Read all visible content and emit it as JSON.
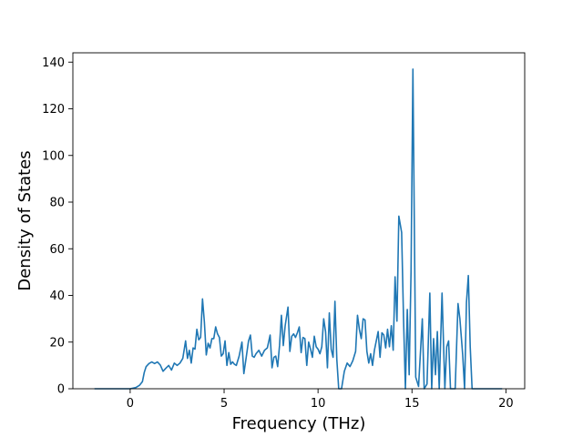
{
  "chart_data": {
    "type": "line",
    "title": "",
    "xlabel": "Frequency (THz)",
    "ylabel": "Density of States",
    "xlim": [
      -3.05,
      21.0
    ],
    "ylim": [
      0,
      144
    ],
    "xticks": [
      0,
      5,
      10,
      15,
      20
    ],
    "yticks": [
      0,
      20,
      40,
      60,
      80,
      100,
      120,
      140
    ],
    "grid": false,
    "legend": "none",
    "series": [
      {
        "color": "#1f77b4",
        "points": [
          [
            -1.9,
            0
          ],
          [
            -1.0,
            0
          ],
          [
            0.0,
            0
          ],
          [
            0.3,
            0.5
          ],
          [
            0.5,
            1.5
          ],
          [
            0.65,
            3
          ],
          [
            0.75,
            7
          ],
          [
            0.85,
            9.5
          ],
          [
            1.0,
            10.8
          ],
          [
            1.15,
            11.5
          ],
          [
            1.3,
            10.8
          ],
          [
            1.45,
            11.5
          ],
          [
            1.6,
            10.2
          ],
          [
            1.75,
            7.5
          ],
          [
            1.9,
            8.8
          ],
          [
            2.05,
            10.0
          ],
          [
            2.2,
            8.0
          ],
          [
            2.35,
            11.0
          ],
          [
            2.5,
            10.0
          ],
          [
            2.65,
            11.0
          ],
          [
            2.8,
            13.0
          ],
          [
            2.95,
            20.5
          ],
          [
            3.05,
            13.0
          ],
          [
            3.15,
            16.5
          ],
          [
            3.25,
            11.0
          ],
          [
            3.35,
            17.5
          ],
          [
            3.45,
            17.0
          ],
          [
            3.55,
            25.5
          ],
          [
            3.65,
            21.0
          ],
          [
            3.75,
            22.0
          ],
          [
            3.85,
            38.5
          ],
          [
            3.95,
            28.5
          ],
          [
            4.05,
            14.5
          ],
          [
            4.15,
            19.5
          ],
          [
            4.25,
            17.5
          ],
          [
            4.35,
            21.5
          ],
          [
            4.45,
            21.5
          ],
          [
            4.55,
            26.5
          ],
          [
            4.65,
            23.5
          ],
          [
            4.75,
            22.0
          ],
          [
            4.85,
            14.0
          ],
          [
            4.95,
            15.0
          ],
          [
            5.05,
            20.5
          ],
          [
            5.15,
            10.0
          ],
          [
            5.25,
            15.5
          ],
          [
            5.35,
            10.5
          ],
          [
            5.45,
            11.5
          ],
          [
            5.55,
            10.5
          ],
          [
            5.65,
            10.0
          ],
          [
            5.8,
            14.0
          ],
          [
            5.95,
            20.0
          ],
          [
            6.05,
            6.5
          ],
          [
            6.15,
            12.0
          ],
          [
            6.3,
            20.5
          ],
          [
            6.4,
            23.0
          ],
          [
            6.5,
            14.0
          ],
          [
            6.6,
            13.5
          ],
          [
            6.7,
            15.0
          ],
          [
            6.85,
            16.5
          ],
          [
            7.0,
            14.0
          ],
          [
            7.15,
            16.5
          ],
          [
            7.3,
            17.5
          ],
          [
            7.45,
            23.0
          ],
          [
            7.55,
            9.0
          ],
          [
            7.65,
            13.5
          ],
          [
            7.75,
            14.0
          ],
          [
            7.85,
            9.5
          ],
          [
            7.95,
            18.5
          ],
          [
            8.05,
            31.5
          ],
          [
            8.15,
            18.5
          ],
          [
            8.25,
            27.0
          ],
          [
            8.4,
            35.0
          ],
          [
            8.5,
            16.0
          ],
          [
            8.6,
            22.5
          ],
          [
            8.7,
            23.5
          ],
          [
            8.8,
            22.0
          ],
          [
            8.9,
            24.0
          ],
          [
            9.0,
            26.5
          ],
          [
            9.1,
            15.5
          ],
          [
            9.2,
            22.0
          ],
          [
            9.3,
            21.5
          ],
          [
            9.4,
            10.0
          ],
          [
            9.5,
            20.0
          ],
          [
            9.6,
            17.0
          ],
          [
            9.7,
            13.5
          ],
          [
            9.8,
            22.5
          ],
          [
            9.9,
            18.0
          ],
          [
            10.0,
            17.0
          ],
          [
            10.1,
            15.0
          ],
          [
            10.2,
            18.0
          ],
          [
            10.3,
            30.0
          ],
          [
            10.4,
            24.5
          ],
          [
            10.5,
            9.0
          ],
          [
            10.6,
            32.5
          ],
          [
            10.7,
            17.0
          ],
          [
            10.8,
            13.5
          ],
          [
            10.9,
            37.5
          ],
          [
            11.0,
            12.5
          ],
          [
            11.1,
            0
          ],
          [
            11.25,
            0
          ],
          [
            11.4,
            7.5
          ],
          [
            11.55,
            11.0
          ],
          [
            11.7,
            9.5
          ],
          [
            11.85,
            12.0
          ],
          [
            12.0,
            16.0
          ],
          [
            12.1,
            31.5
          ],
          [
            12.2,
            25.5
          ],
          [
            12.3,
            21.5
          ],
          [
            12.4,
            30.0
          ],
          [
            12.5,
            29.5
          ],
          [
            12.6,
            16.0
          ],
          [
            12.7,
            11.0
          ],
          [
            12.8,
            15.0
          ],
          [
            12.9,
            10.0
          ],
          [
            13.0,
            16.5
          ],
          [
            13.1,
            20.5
          ],
          [
            13.2,
            24.5
          ],
          [
            13.3,
            13.5
          ],
          [
            13.4,
            24.0
          ],
          [
            13.5,
            23.0
          ],
          [
            13.6,
            17.5
          ],
          [
            13.7,
            25.5
          ],
          [
            13.8,
            18.0
          ],
          [
            13.9,
            27.0
          ],
          [
            14.0,
            16.5
          ],
          [
            14.1,
            48.0
          ],
          [
            14.2,
            29.0
          ],
          [
            14.3,
            74.0
          ],
          [
            14.45,
            67.0
          ],
          [
            14.55,
            30.0
          ],
          [
            14.65,
            0
          ],
          [
            14.75,
            34.0
          ],
          [
            14.85,
            6.0
          ],
          [
            14.95,
            50.0
          ],
          [
            15.05,
            137.0
          ],
          [
            15.2,
            5.0
          ],
          [
            15.35,
            1.0
          ],
          [
            15.55,
            30.0
          ],
          [
            15.65,
            0
          ],
          [
            15.8,
            2.0
          ],
          [
            15.95,
            41.0
          ],
          [
            16.05,
            0
          ],
          [
            16.15,
            21.5
          ],
          [
            16.25,
            6.0
          ],
          [
            16.35,
            24.5
          ],
          [
            16.45,
            0
          ],
          [
            16.6,
            41.0
          ],
          [
            16.75,
            0
          ],
          [
            16.85,
            18.0
          ],
          [
            16.95,
            20.5
          ],
          [
            17.05,
            0
          ],
          [
            17.3,
            0
          ],
          [
            17.45,
            36.5
          ],
          [
            17.55,
            30.0
          ],
          [
            17.7,
            14.5
          ],
          [
            17.8,
            0
          ],
          [
            17.9,
            37.0
          ],
          [
            18.0,
            48.5
          ],
          [
            18.1,
            18.0
          ],
          [
            18.2,
            0
          ],
          [
            19.0,
            0
          ],
          [
            19.8,
            0
          ]
        ]
      }
    ]
  }
}
